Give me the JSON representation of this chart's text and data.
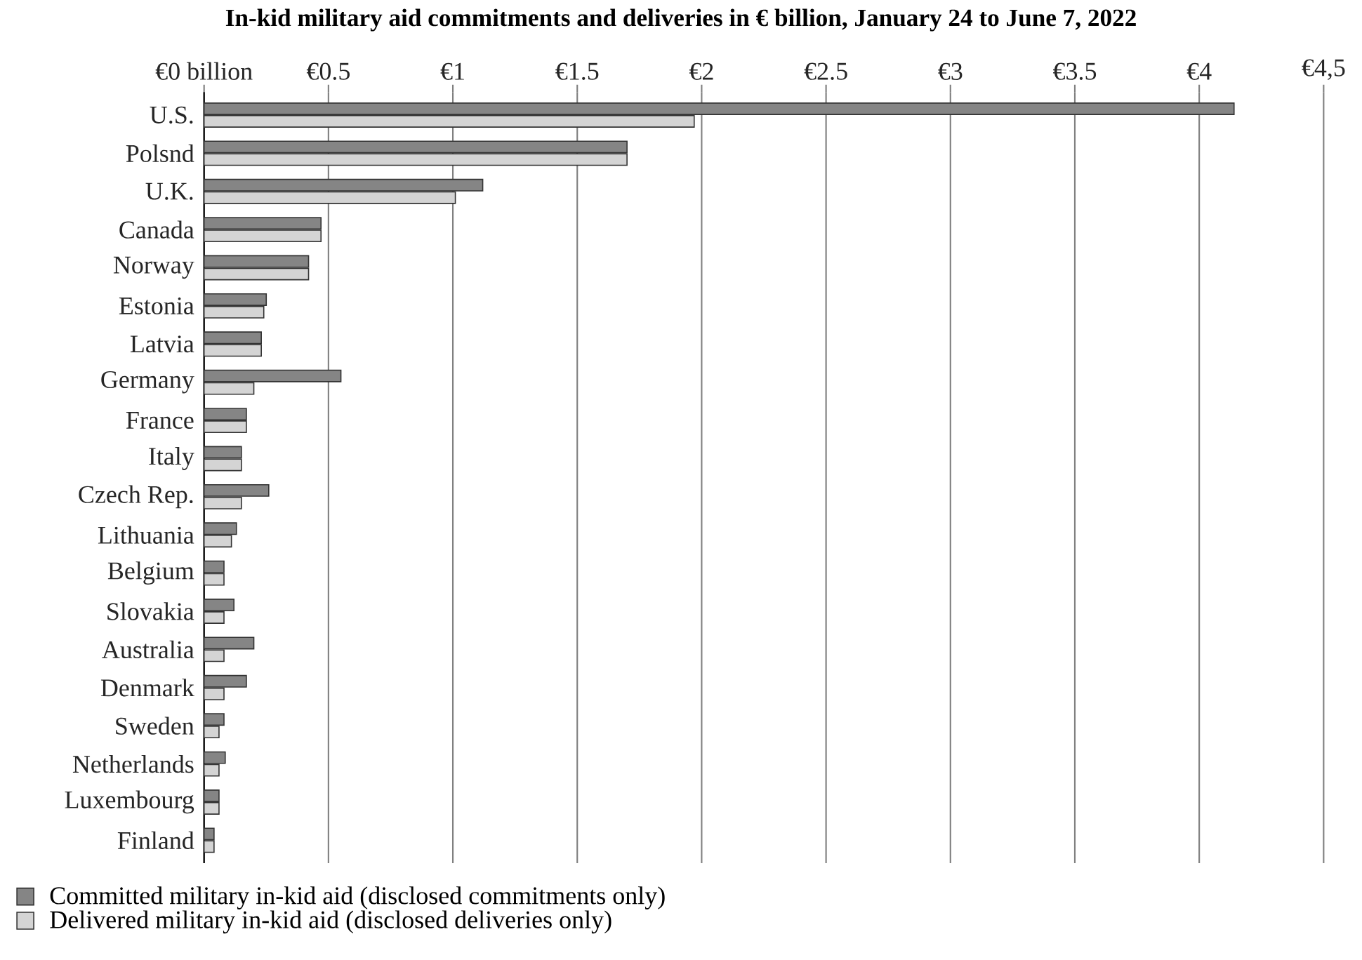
{
  "chart_data": {
    "type": "bar",
    "orientation": "horizontal",
    "title": "In-kid military aid commitments and deliveries in € billion, January 24 to June 7, 2022",
    "categories": [
      "U.S.",
      "Polsnd",
      "U.K.",
      "Canada",
      "Norway",
      "Estonia",
      "Latvia",
      "Germany",
      "France",
      "Italy",
      "Czech Rep.",
      "Lithuania",
      "Belgium",
      "Slovakia",
      "Australia",
      "Denmark",
      "Sweden",
      "Netherlands",
      "Luxembourg",
      "Finland"
    ],
    "series": [
      {
        "name": "Committed military in-kid aid (disclosed commitments only)",
        "color": "#858585",
        "values": [
          4.14,
          1.7,
          1.12,
          0.47,
          0.42,
          0.25,
          0.23,
          0.55,
          0.17,
          0.15,
          0.26,
          0.13,
          0.08,
          0.12,
          0.2,
          0.17,
          0.08,
          0.085,
          0.06,
          0.04
        ]
      },
      {
        "name": "Delivered military in-kid aid (disclosed deliveries only)",
        "color": "#d4d4d4",
        "values": [
          1.97,
          1.7,
          1.01,
          0.47,
          0.42,
          0.24,
          0.23,
          0.2,
          0.17,
          0.15,
          0.15,
          0.11,
          0.08,
          0.08,
          0.08,
          0.08,
          0.06,
          0.06,
          0.06,
          0.04
        ]
      }
    ],
    "xlim": [
      0,
      4.5
    ],
    "xticks": [
      {
        "value": 0,
        "label": "€0 billion"
      },
      {
        "value": 0.5,
        "label": "€0.5"
      },
      {
        "value": 1,
        "label": "€1"
      },
      {
        "value": 1.5,
        "label": "€1.5"
      },
      {
        "value": 2,
        "label": "€2"
      },
      {
        "value": 2.5,
        "label": "€2.5"
      },
      {
        "value": 3,
        "label": "€3"
      },
      {
        "value": 3.5,
        "label": "€3.5"
      },
      {
        "value": 4,
        "label": "€4"
      },
      {
        "value": 4.5,
        "label": "€4,5"
      }
    ],
    "grid": "x",
    "legend": "bottom left"
  }
}
